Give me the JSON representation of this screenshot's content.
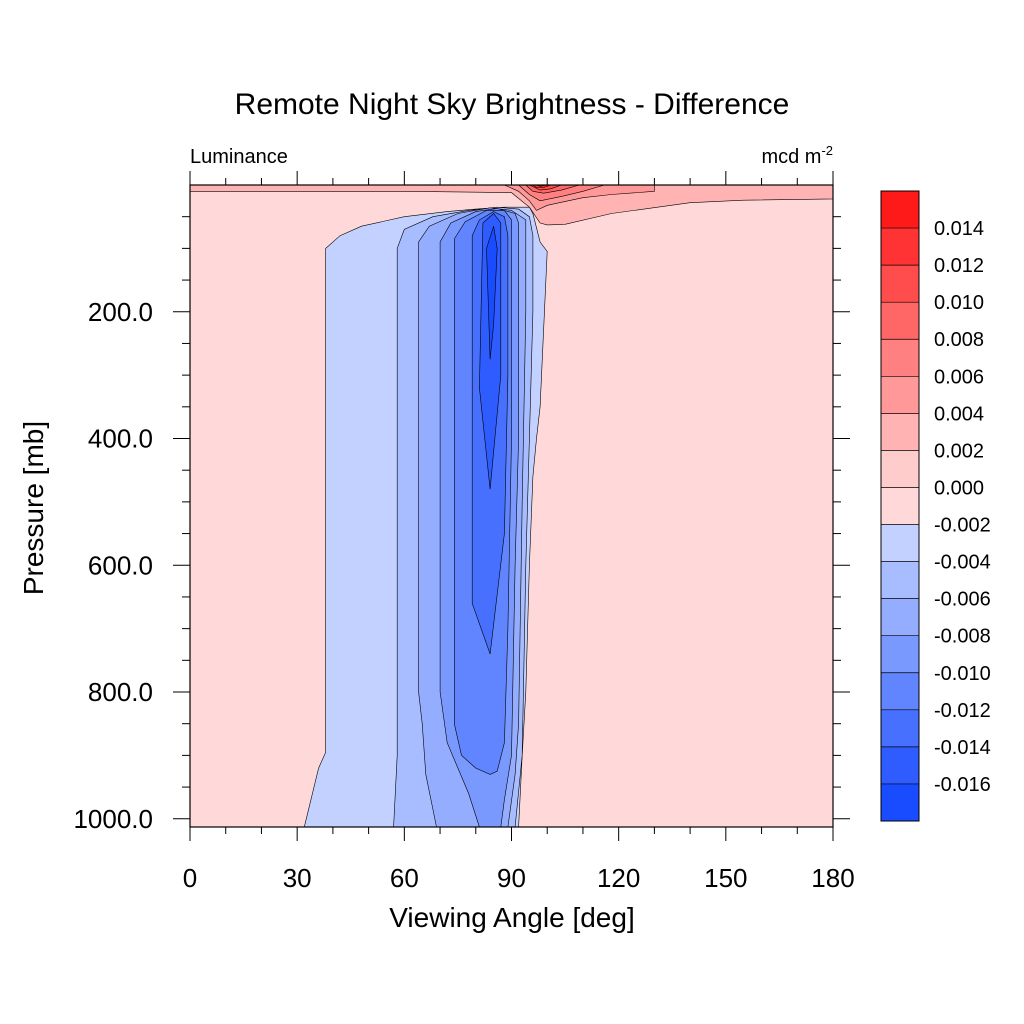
{
  "chart_data": {
    "type": "contour",
    "title": "Remote Night Sky Brightness - Difference",
    "left_label": "Luminance",
    "right_label": {
      "base": "mcd m",
      "sup": "-2"
    },
    "xlabel": "Viewing Angle [deg]",
    "ylabel": "Pressure [mb]",
    "xlim": [
      0,
      180
    ],
    "ylim": [
      0,
      1013
    ],
    "y_reversed": true,
    "x_ticks": [
      "0",
      "30",
      "60",
      "90",
      "120",
      "150",
      "180"
    ],
    "y_ticks": [
      "200.0",
      "400.0",
      "600.0",
      "800.0",
      "1000.0"
    ],
    "y_tick_values": [
      200,
      400,
      600,
      800,
      1000
    ],
    "colorbar": {
      "labels": [
        "0.014",
        "0.012",
        "0.010",
        "0.008",
        "0.006",
        "0.004",
        "0.002",
        "0.000",
        "-0.002",
        "-0.004",
        "-0.006",
        "-0.008",
        "-0.010",
        "-0.012",
        "-0.014",
        "-0.016"
      ],
      "colors": [
        "#ff1a1a",
        "#ff3333",
        "#ff4d4d",
        "#ff6666",
        "#ff8080",
        "#ff9999",
        "#ffb3b3",
        "#ffcccc",
        "#ffd9d9",
        "#c2d1ff",
        "#a8bdff",
        "#94adff",
        "#7a99ff",
        "#6185ff",
        "#4770ff",
        "#2e5cff",
        "#1a4cff"
      ]
    },
    "contours": [
      {
        "level": "-0.002",
        "color": "#c2d1ff",
        "points": [
          [
            32,
            1013
          ],
          [
            36,
            920
          ],
          [
            38,
            895
          ],
          [
            38,
            100
          ],
          [
            42,
            80
          ],
          [
            48,
            65
          ],
          [
            60,
            50
          ],
          [
            72,
            42
          ],
          [
            80,
            38
          ],
          [
            88,
            35
          ],
          [
            95,
            35
          ],
          [
            96,
            45
          ],
          [
            98,
            90
          ],
          [
            100,
            105
          ],
          [
            98,
            350
          ],
          [
            97,
            400
          ],
          [
            96,
            460
          ],
          [
            95,
            600
          ],
          [
            94,
            800
          ],
          [
            93,
            900
          ],
          [
            92,
            1013
          ]
        ]
      },
      {
        "level": "-0.004",
        "color": "#a8bdff",
        "points": [
          [
            57,
            1013
          ],
          [
            58,
            900
          ],
          [
            58,
            850
          ],
          [
            58,
            100
          ],
          [
            60,
            70
          ],
          [
            68,
            50
          ],
          [
            78,
            40
          ],
          [
            86,
            35
          ],
          [
            92,
            38
          ],
          [
            95,
            50
          ],
          [
            96,
            80
          ],
          [
            96,
            200
          ],
          [
            95,
            400
          ],
          [
            94,
            600
          ],
          [
            93,
            900
          ],
          [
            91,
            1013
          ]
        ]
      },
      {
        "level": "-0.006",
        "color": "#94adff",
        "points": [
          [
            69,
            1013
          ],
          [
            66,
            930
          ],
          [
            65,
            850
          ],
          [
            64,
            800
          ],
          [
            64,
            90
          ],
          [
            67,
            65
          ],
          [
            75,
            45
          ],
          [
            84,
            36
          ],
          [
            90,
            40
          ],
          [
            94,
            55
          ],
          [
            94,
            200
          ],
          [
            93,
            500
          ],
          [
            92,
            850
          ],
          [
            91,
            930
          ],
          [
            89,
            1013
          ]
        ]
      },
      {
        "level": "-0.008",
        "color": "#7a99ff",
        "points": [
          [
            81,
            1013
          ],
          [
            78,
            960
          ],
          [
            75,
            920
          ],
          [
            72,
            880
          ],
          [
            70,
            800
          ],
          [
            70,
            90
          ],
          [
            73,
            60
          ],
          [
            80,
            42
          ],
          [
            86,
            37
          ],
          [
            91,
            45
          ],
          [
            92,
            60
          ],
          [
            92,
            400
          ],
          [
            91,
            600
          ],
          [
            90,
            900
          ],
          [
            88,
            970
          ],
          [
            87,
            1013
          ]
        ]
      },
      {
        "level": "-0.010",
        "color": "#6185ff",
        "points": [
          [
            76,
            900
          ],
          [
            74,
            850
          ],
          [
            74,
            85
          ],
          [
            77,
            58
          ],
          [
            83,
            40
          ],
          [
            88,
            40
          ],
          [
            90,
            55
          ],
          [
            90,
            400
          ],
          [
            89,
            700
          ],
          [
            88,
            880
          ],
          [
            86,
            925
          ],
          [
            84,
            930
          ],
          [
            80,
            920
          ]
        ]
      },
      {
        "level": "-0.012",
        "color": "#4770ff",
        "points": [
          [
            84,
            740
          ],
          [
            79,
            660
          ],
          [
            79,
            80
          ],
          [
            81,
            55
          ],
          [
            85,
            42
          ],
          [
            88,
            50
          ],
          [
            89,
            80
          ],
          [
            89,
            300
          ],
          [
            88,
            550
          ]
        ]
      },
      {
        "level": "-0.014",
        "color": "#2e5cff",
        "points": [
          [
            84,
            480
          ],
          [
            81,
            320
          ],
          [
            82,
            60
          ],
          [
            85,
            45
          ],
          [
            87,
            60
          ],
          [
            87,
            300
          ]
        ]
      },
      {
        "level": "-0.016",
        "color": "#1a4cff",
        "points": [
          [
            84,
            275
          ],
          [
            83,
            100
          ],
          [
            85,
            65
          ],
          [
            86,
            100
          ],
          [
            85,
            220
          ]
        ]
      },
      {
        "level": "0.000",
        "color": "#ffb3b3",
        "points": [
          [
            0,
            0
          ],
          [
            180,
            0
          ],
          [
            180,
            22
          ],
          [
            155,
            24
          ],
          [
            140,
            28
          ],
          [
            118,
            45
          ],
          [
            105,
            62
          ],
          [
            100,
            63
          ],
          [
            98,
            60
          ],
          [
            95,
            35
          ],
          [
            90,
            12
          ],
          [
            60,
            10
          ],
          [
            0,
            10
          ]
        ]
      },
      {
        "level": "0.002",
        "color": "#ff9999",
        "points": [
          [
            88,
            0
          ],
          [
            130,
            0
          ],
          [
            130,
            10
          ],
          [
            118,
            15
          ],
          [
            110,
            20
          ],
          [
            100,
            32
          ],
          [
            97,
            40
          ],
          [
            95,
            25
          ],
          [
            92,
            10
          ]
        ]
      },
      {
        "level": "0.004",
        "color": "#ff8080",
        "points": [
          [
            92,
            0
          ],
          [
            116,
            0
          ],
          [
            110,
            10
          ],
          [
            104,
            18
          ],
          [
            98,
            25
          ],
          [
            95,
            15
          ]
        ]
      },
      {
        "level": "0.006",
        "color": "#ff6666",
        "points": [
          [
            94,
            0
          ],
          [
            109,
            0
          ],
          [
            104,
            8
          ],
          [
            99,
            13
          ],
          [
            96,
            10
          ]
        ]
      },
      {
        "level": "0.008",
        "color": "#ff4d4d",
        "points": [
          [
            95,
            0
          ],
          [
            104,
            0
          ],
          [
            101,
            6
          ],
          [
            98,
            8
          ]
        ]
      },
      {
        "level": "0.010",
        "color": "#ff3333",
        "points": [
          [
            96,
            0
          ],
          [
            101,
            0
          ],
          [
            99,
            4
          ],
          [
            97,
            4
          ]
        ]
      },
      {
        "level": "0.012",
        "color": "#ff1a1a",
        "points": [
          [
            97,
            0
          ],
          [
            100,
            0
          ],
          [
            98,
            2
          ]
        ]
      }
    ]
  }
}
